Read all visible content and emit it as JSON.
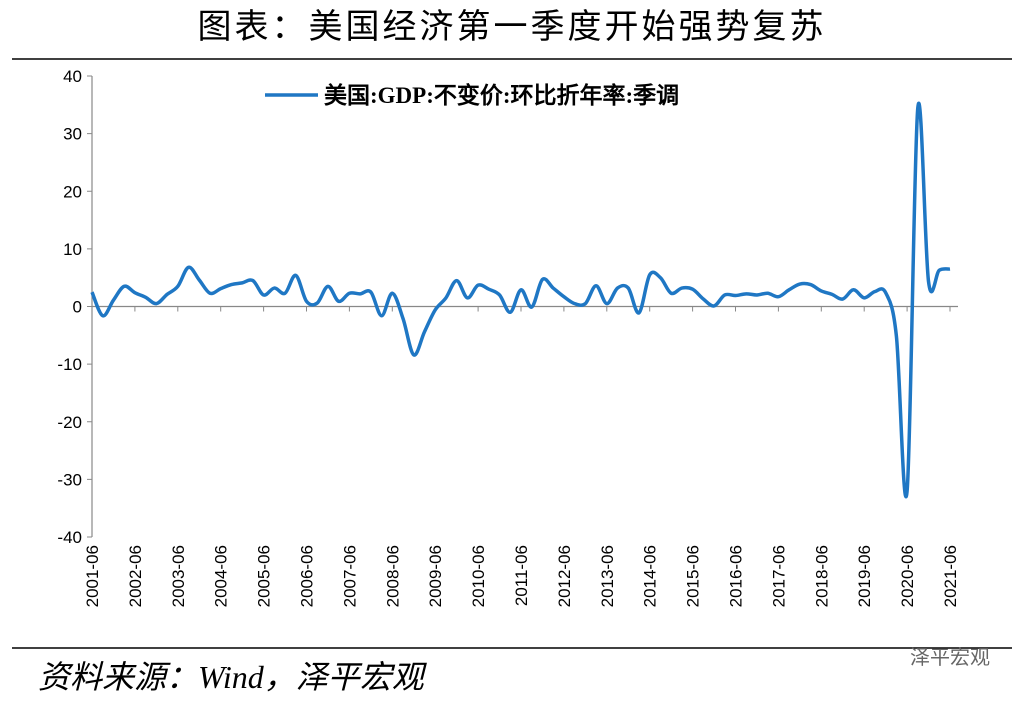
{
  "chart_data": {
    "type": "line",
    "title": "图表：美国经济第一季度开始强势复苏",
    "source": "资料来源：Wind，泽平宏观",
    "watermark": "泽平宏观",
    "categories": [
      "2001-06",
      null,
      null,
      null,
      "2002-06",
      null,
      null,
      null,
      "2003-06",
      null,
      null,
      null,
      "2004-06",
      null,
      null,
      null,
      "2005-06",
      null,
      null,
      null,
      "2006-06",
      null,
      null,
      null,
      "2007-06",
      null,
      null,
      null,
      "2008-06",
      null,
      null,
      null,
      "2009-06",
      null,
      null,
      null,
      "2010-06",
      null,
      null,
      null,
      "2011-06",
      null,
      null,
      null,
      "2012-06",
      null,
      null,
      null,
      "2013-06",
      null,
      null,
      null,
      "2014-06",
      null,
      null,
      null,
      "2015-06",
      null,
      null,
      null,
      "2016-06",
      null,
      null,
      null,
      "2017-06",
      null,
      null,
      null,
      "2018-06",
      null,
      null,
      null,
      "2019-06",
      null,
      null,
      null,
      "2020-06",
      null,
      null,
      null,
      "2021-06"
    ],
    "series": [
      {
        "name": "美国:GDP:不变价:环比折年率:季调",
        "color": "#1f77c4",
        "values": [
          2.5,
          -1.6,
          1.1,
          3.5,
          2.4,
          1.6,
          0.5,
          2.1,
          3.5,
          6.8,
          4.6,
          2.3,
          3.1,
          3.8,
          4.1,
          4.5,
          2.0,
          3.2,
          2.3,
          5.4,
          0.9,
          0.6,
          3.5,
          0.9,
          2.3,
          2.2,
          2.5,
          -1.6,
          2.3,
          -2.1,
          -8.4,
          -4.4,
          -0.6,
          1.5,
          4.5,
          1.5,
          3.7,
          3.0,
          2.0,
          -1.0,
          2.9,
          -0.1,
          4.7,
          3.2,
          1.7,
          0.5,
          0.5,
          3.6,
          0.5,
          3.2,
          3.2,
          -1.1,
          5.5,
          5.0,
          2.3,
          3.2,
          3.0,
          1.3,
          0.1,
          2.0,
          1.9,
          2.2,
          2.0,
          2.3,
          1.7,
          2.9,
          3.9,
          3.8,
          2.7,
          2.1,
          1.3,
          2.9,
          1.5,
          2.6,
          2.4,
          -5.1,
          -32.0,
          34.5,
          4.3,
          6.3,
          6.5
        ]
      }
    ],
    "ylim": [
      -40,
      40
    ],
    "yticks": [
      -40,
      -30,
      -20,
      -10,
      0,
      10,
      20,
      30,
      40
    ]
  }
}
